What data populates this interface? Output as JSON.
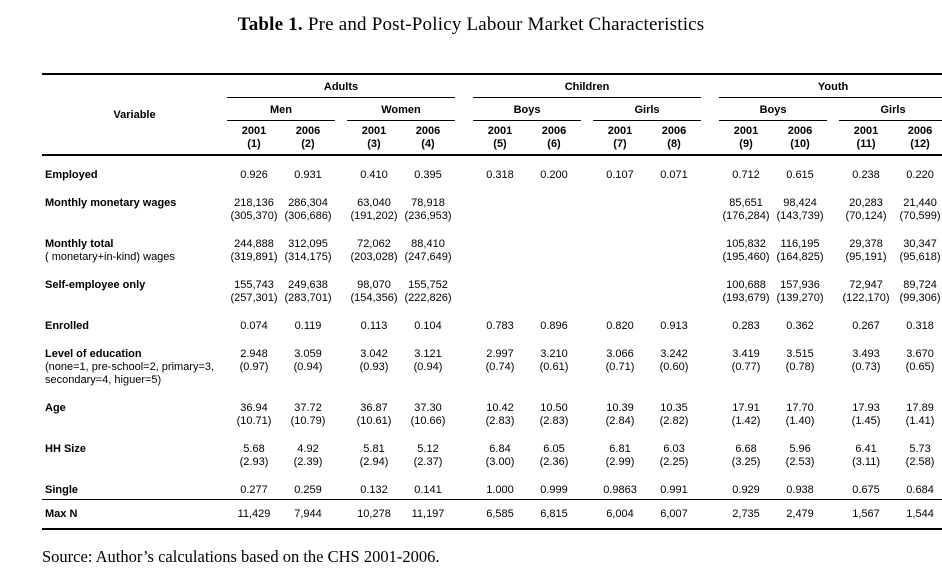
{
  "title": {
    "prefix": "Table 1.",
    "text": " Pre and Post-Policy Labour Market Characteristics"
  },
  "source": "Source: Author’s calculations based on the CHS 2001-2006.",
  "table": {
    "variable_header": "Variable",
    "groups": [
      {
        "label": "Adults",
        "subgroups": [
          {
            "label": "Men"
          },
          {
            "label": "Women"
          }
        ]
      },
      {
        "label": "Children",
        "subgroups": [
          {
            "label": "Boys"
          },
          {
            "label": "Girls"
          }
        ]
      },
      {
        "label": "Youth",
        "subgroups": [
          {
            "label": "Boys"
          },
          {
            "label": "Girls"
          }
        ]
      }
    ],
    "columns": [
      {
        "year": "2001",
        "num": "(1)"
      },
      {
        "year": "2006",
        "num": "(2)"
      },
      {
        "year": "2001",
        "num": "(3)"
      },
      {
        "year": "2006",
        "num": "(4)"
      },
      {
        "year": "2001",
        "num": "(5)"
      },
      {
        "year": "2006",
        "num": "(6)"
      },
      {
        "year": "2001",
        "num": "(7)"
      },
      {
        "year": "2006",
        "num": "(8)"
      },
      {
        "year": "2001",
        "num": "(9)"
      },
      {
        "year": "2006",
        "num": "(10)"
      },
      {
        "year": "2001",
        "num": "(11)"
      },
      {
        "year": "2006",
        "num": "(12)"
      }
    ],
    "rows": [
      {
        "label": "Employed",
        "values": [
          "0.926",
          "0.931",
          "0.410",
          "0.395",
          "0.318",
          "0.200",
          "0.107",
          "0.071",
          "0.712",
          "0.615",
          "0.238",
          "0.220"
        ]
      },
      {
        "label": "Monthly monetary wages",
        "values": [
          "218,136",
          "286,304",
          "63,040",
          "78,918",
          "",
          "",
          "",
          "",
          "85,651",
          "98,424",
          "20,283",
          "21,440"
        ],
        "sd": [
          "(305,370)",
          "(306,686)",
          "(191,202)",
          "(236,953)",
          "",
          "",
          "",
          "",
          "(176,284)",
          "(143,739)",
          "(70,124)",
          "(70,599)"
        ]
      },
      {
        "label": "Monthly total",
        "sublabel": "( monetary+in-kind) wages",
        "values": [
          "244,888",
          "312,095",
          "72,062",
          "88,410",
          "",
          "",
          "",
          "",
          "105,832",
          "116,195",
          "29,378",
          "30,347"
        ],
        "sd": [
          "(319,891)",
          "(314,175)",
          "(203,028)",
          "(247,649)",
          "",
          "",
          "",
          "",
          "(195,460)",
          "(164,825)",
          "(95,191)",
          "(95,618)"
        ]
      },
      {
        "label": "Self-employee only",
        "values": [
          "155,743",
          "249,638",
          "98,070",
          "155,752",
          "",
          "",
          "",
          "",
          "100,688",
          "157,936",
          "72,947",
          "89,724"
        ],
        "sd": [
          "(257,301)",
          "(283,701)",
          "(154,356)",
          "(222,826)",
          "",
          "",
          "",
          "",
          "(193,679)",
          "(139,270)",
          "(122,170)",
          "(99,306)"
        ]
      },
      {
        "label": "Enrolled",
        "values": [
          "0.074",
          "0.119",
          "0.113",
          "0.104",
          "0.783",
          "0.896",
          "0.820",
          "0.913",
          "0.283",
          "0.362",
          "0.267",
          "0.318"
        ]
      },
      {
        "label": "Level of education",
        "sublabel": "(none=1, pre-school=2, primary=3, secondary=4, higuer=5)",
        "values": [
          "2.948",
          "3.059",
          "3.042",
          "3.121",
          "2.997",
          "3.210",
          "3.066",
          "3.242",
          "3.419",
          "3.515",
          "3.493",
          "3.670"
        ],
        "sd": [
          "(0.97)",
          "(0.94)",
          "(0.93)",
          "(0.94)",
          "(0.74)",
          "(0.61)",
          "(0.71)",
          "(0.60)",
          "(0.77)",
          "(0.78)",
          "(0.73)",
          "(0.65)"
        ]
      },
      {
        "label": "Age",
        "values": [
          "36.94",
          "37.72",
          "36.87",
          "37.30",
          "10.42",
          "10.50",
          "10.39",
          "10.35",
          "17.91",
          "17.70",
          "17.93",
          "17.89"
        ],
        "sd": [
          "(10.71)",
          "(10.79)",
          "(10.61)",
          "(10.66)",
          "(2.83)",
          "(2.83)",
          "(2.84)",
          "(2.82)",
          "(1.42)",
          "(1.40)",
          "(1.45)",
          "(1.41)"
        ]
      },
      {
        "label": "HH Size",
        "values": [
          "5.68",
          "4.92",
          "5.81",
          "5.12",
          "6.84",
          "6.05",
          "6.81",
          "6.03",
          "6.68",
          "5.96",
          "6.41",
          "5.73"
        ],
        "sd": [
          "(2.93)",
          "(2.39)",
          "(2.94)",
          "(2.37)",
          "(3.00)",
          "(2.36)",
          "(2.99)",
          "(2.25)",
          "(3.25)",
          "(2.53)",
          "(3.11)",
          "(2.58)"
        ]
      },
      {
        "label": "Single",
        "values": [
          "0.277",
          "0.259",
          "0.132",
          "0.141",
          "1.000",
          "0.999",
          "0.9863",
          "0.991",
          "0.929",
          "0.938",
          "0.675",
          "0.684"
        ]
      },
      {
        "label": "Max N",
        "rule_above": true,
        "values": [
          "11,429",
          "7,944",
          "10,278",
          "11,197",
          "6,585",
          "6,815",
          "6,004",
          "6,007",
          "2,735",
          "2,479",
          "1,567",
          "1,544"
        ]
      }
    ]
  }
}
